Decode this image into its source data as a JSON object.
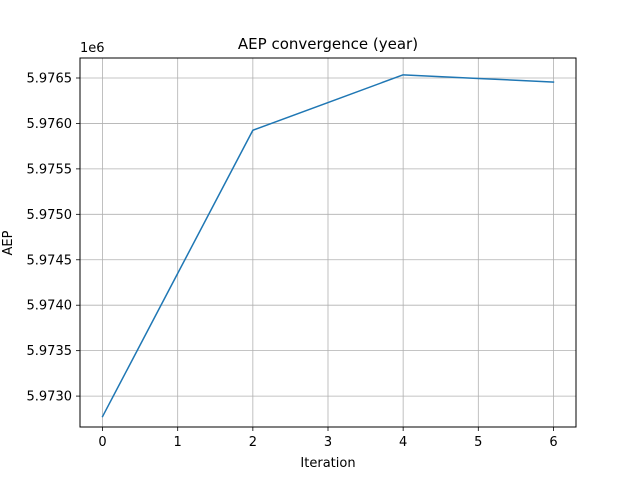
{
  "chart_data": {
    "type": "line",
    "title": "AEP convergence (year)",
    "xlabel": "Iteration",
    "ylabel": "AEP",
    "y_offset_label": "1e6",
    "y_scale_factor": 1000000,
    "x": [
      0,
      1,
      2,
      3,
      4,
      5,
      6
    ],
    "series": [
      {
        "values": [
          5972775,
          5974350,
          5975925,
          5976230,
          5976535,
          5976495,
          5976455
        ],
        "color": "#1f77b4"
      }
    ],
    "xlim": [
      -0.3,
      6.3
    ],
    "ylim": [
      5972660,
      5976720
    ],
    "x_ticks": [
      0,
      1,
      2,
      3,
      4,
      5,
      6
    ],
    "x_tick_labels": [
      "0",
      "1",
      "2",
      "3",
      "4",
      "5",
      "6"
    ],
    "y_ticks": [
      5973000,
      5973500,
      5974000,
      5974500,
      5975000,
      5975500,
      5976000,
      5976500
    ],
    "y_tick_labels": [
      "5.9730",
      "5.9735",
      "5.9740",
      "5.9745",
      "5.9750",
      "5.9755",
      "5.9760",
      "5.9765"
    ],
    "grid": true
  }
}
